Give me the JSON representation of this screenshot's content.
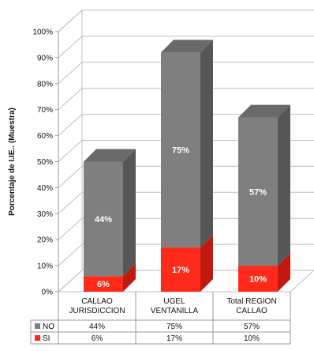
{
  "chart_data": {
    "type": "bar",
    "stacked": true,
    "three_d": true,
    "ylabel": "Porcentaje de I.IE.. (Muestra)",
    "ylim": [
      0,
      100
    ],
    "yticks": [
      "0%",
      "10%",
      "20%",
      "30%",
      "40%",
      "50%",
      "60%",
      "70%",
      "80%",
      "90%",
      "100%"
    ],
    "categories": [
      "CALLAO JURISDICCION",
      "UGEL VENTANILLA",
      "Total REGION CALLAO"
    ],
    "category_lines": [
      [
        "CALLAO",
        "JURISDICCION"
      ],
      [
        "UGEL",
        "VENTANILLA"
      ],
      [
        "Total REGION",
        "CALLAO"
      ]
    ],
    "series": [
      {
        "name": "SI",
        "values": [
          6,
          17,
          10
        ],
        "labels": [
          "6%",
          "17%",
          "10%"
        ],
        "color": "#ff2a1a",
        "side": "#c01a10",
        "top": "#e02010"
      },
      {
        "name": "NO",
        "values": [
          44,
          75,
          57
        ],
        "labels": [
          "44%",
          "75%",
          "57%"
        ],
        "color": "#7f7f7f",
        "side": "#565656",
        "top": "#6a6a6a"
      }
    ],
    "grid": true,
    "legend": "data-table-below"
  }
}
